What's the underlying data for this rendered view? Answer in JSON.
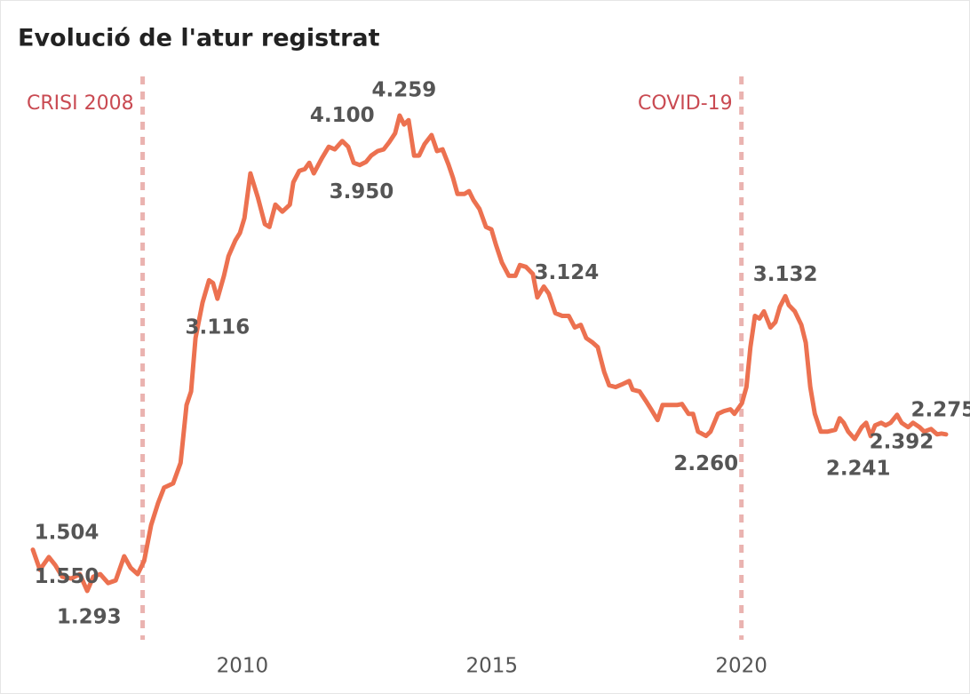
{
  "chart_data": {
    "type": "line",
    "title": "Evolució de l'atur registrat",
    "xlim": [
      2005.8,
      2024.1
    ],
    "xticks": [
      2010,
      2015,
      2020
    ],
    "events": [
      {
        "x": 2008,
        "label": "CRISI 2008"
      },
      {
        "x": 2020,
        "label": "COVID-19"
      }
    ],
    "x": [
      2005.8,
      2005.94,
      2006.12,
      2006.25,
      2006.39,
      2006.57,
      2006.74,
      2006.89,
      2007.01,
      2007.15,
      2007.31,
      2007.46,
      2007.63,
      2007.76,
      2007.9,
      2008.03,
      2008.17,
      2008.31,
      2008.43,
      2008.61,
      2008.76,
      2008.88,
      2008.97,
      2009.06,
      2009.2,
      2009.33,
      2009.41,
      2009.5,
      2009.63,
      2009.72,
      2009.86,
      2009.95,
      2010.04,
      2010.16,
      2010.31,
      2010.45,
      2010.54,
      2010.66,
      2010.8,
      2010.95,
      2011.02,
      2011.14,
      2011.25,
      2011.34,
      2011.43,
      2011.59,
      2011.73,
      2011.85,
      2012.0,
      2012.12,
      2012.23,
      2012.35,
      2012.48,
      2012.58,
      2012.71,
      2012.83,
      2012.94,
      2013.06,
      2013.15,
      2013.24,
      2013.33,
      2013.44,
      2013.54,
      2013.65,
      2013.79,
      2013.9,
      2014.01,
      2014.13,
      2014.22,
      2014.31,
      2014.45,
      2014.54,
      2014.63,
      2014.75,
      2014.88,
      2014.99,
      2015.08,
      2015.2,
      2015.34,
      2015.47,
      2015.56,
      2015.68,
      2015.82,
      2015.91,
      2016.04,
      2016.14,
      2016.27,
      2016.41,
      2016.54,
      2016.66,
      2016.78,
      2016.89,
      2017.02,
      2017.12,
      2017.25,
      2017.35,
      2017.48,
      2017.6,
      2017.75,
      2017.82,
      2017.96,
      2018.08,
      2018.19,
      2018.32,
      2018.42,
      2018.56,
      2018.71,
      2018.81,
      2018.94,
      2019.03,
      2019.13,
      2019.29,
      2019.38,
      2019.53,
      2019.65,
      2019.78,
      2019.86,
      2020.01,
      2020.1,
      2020.18,
      2020.27,
      2020.36,
      2020.45,
      2020.58,
      2020.68,
      2020.77,
      2020.88,
      2020.95,
      2021.07,
      2021.2,
      2021.29,
      2021.38,
      2021.47,
      2021.59,
      2021.73,
      2021.88,
      2021.97,
      2022.05,
      2022.14,
      2022.27,
      2022.41,
      2022.5,
      2022.59,
      2022.68,
      2022.8,
      2022.89,
      2022.99,
      2023.12,
      2023.21,
      2023.34,
      2023.44,
      2023.57,
      2023.66,
      2023.8,
      2023.92,
      2024.01,
      2024.1
    ],
    "series": [
      {
        "color": "#ec7150",
        "values": [
          1550,
          1425,
          1504,
          1453,
          1381,
          1370,
          1398,
          1293,
          1381,
          1398,
          1342,
          1359,
          1509,
          1437,
          1398,
          1481,
          1703,
          1842,
          1937,
          1964,
          2092,
          2453,
          2537,
          2870,
          3092,
          3231,
          3214,
          3116,
          3259,
          3381,
          3481,
          3526,
          3620,
          3898,
          3748,
          3581,
          3564,
          3703,
          3659,
          3703,
          3842,
          3914,
          3925,
          3964,
          3898,
          3992,
          4064,
          4048,
          4100,
          4064,
          3964,
          3950,
          3970,
          4009,
          4037,
          4048,
          4092,
          4148,
          4259,
          4203,
          4230,
          4009,
          4009,
          4081,
          4137,
          4037,
          4048,
          3953,
          3870,
          3770,
          3770,
          3787,
          3731,
          3676,
          3564,
          3548,
          3453,
          3342,
          3259,
          3259,
          3326,
          3315,
          3270,
          3124,
          3192,
          3148,
          3026,
          3009,
          3009,
          2937,
          2953,
          2870,
          2842,
          2814,
          2659,
          2576,
          2565,
          2581,
          2603,
          2548,
          2537,
          2481,
          2426,
          2359,
          2453,
          2453,
          2453,
          2459,
          2398,
          2398,
          2287,
          2260,
          2287,
          2398,
          2415,
          2426,
          2398,
          2464,
          2565,
          2814,
          3009,
          2992,
          3037,
          2937,
          2970,
          3065,
          3132,
          3076,
          3037,
          2953,
          2842,
          2565,
          2398,
          2287,
          2287,
          2298,
          2370,
          2342,
          2287,
          2241,
          2315,
          2342,
          2259,
          2326,
          2342,
          2326,
          2342,
          2392,
          2342,
          2315,
          2342,
          2315,
          2287,
          2303,
          2270,
          2275,
          2270
        ],
        "value_labels": [
          "1.550",
          null,
          "1.504",
          null,
          null,
          null,
          null,
          "1.293",
          null,
          null,
          null,
          null,
          null,
          null,
          null,
          null,
          null,
          null,
          null,
          null,
          null,
          null,
          null,
          null,
          null,
          null,
          null,
          "3.116",
          null,
          null,
          null,
          null,
          null,
          null,
          null,
          null,
          null,
          null,
          null,
          null,
          null,
          null,
          null,
          null,
          null,
          null,
          null,
          null,
          "4.100",
          null,
          null,
          "3.950",
          null,
          null,
          null,
          null,
          null,
          null,
          "4.259",
          null,
          null,
          null,
          null,
          null,
          null,
          null,
          null,
          null,
          null,
          null,
          null,
          null,
          null,
          null,
          null,
          null,
          null,
          null,
          null,
          null,
          null,
          null,
          null,
          "3.124",
          null,
          null,
          null,
          null,
          null,
          null,
          null,
          null,
          null,
          null,
          null,
          null,
          null,
          null,
          null,
          null,
          null,
          null,
          null,
          null,
          null,
          null,
          null,
          null,
          null,
          null,
          null,
          "2.260",
          null,
          null,
          null,
          null,
          null,
          null,
          null,
          null,
          null,
          null,
          null,
          null,
          null,
          null,
          "3.132",
          null,
          null,
          null,
          null,
          null,
          null,
          null,
          null,
          null,
          null,
          null,
          null,
          "2.241",
          null,
          null,
          null,
          null,
          null,
          null,
          null,
          "2.392",
          null,
          null,
          null,
          null,
          null,
          null,
          null,
          "2.275",
          null
        ]
      }
    ]
  }
}
